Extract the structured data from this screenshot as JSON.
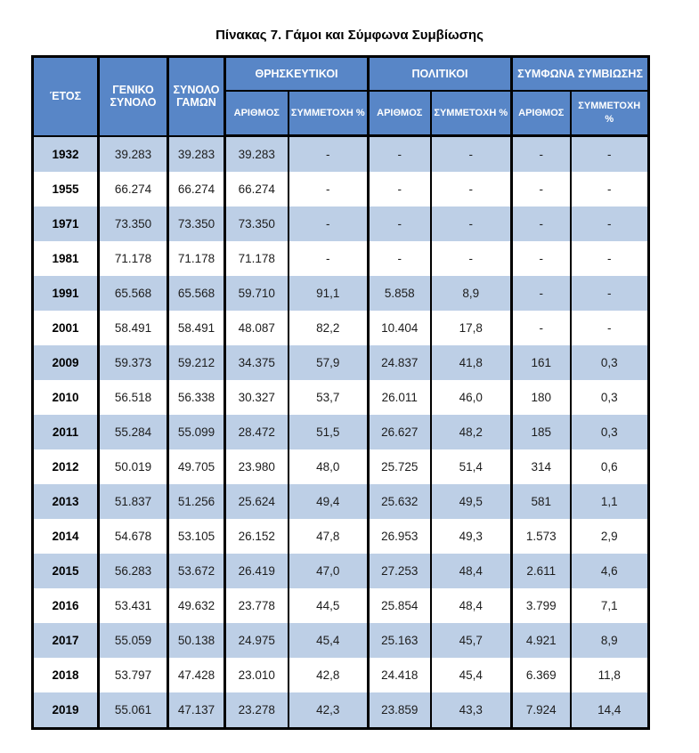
{
  "page": {
    "title": "Πίνακας 7. Γάμοι και Σύμφωνα Συμβίωσης"
  },
  "colors": {
    "header_bg": "#5886c7",
    "header_text": "#ffffff",
    "stripe_bg": "#bdcfe6",
    "row_bg": "#ffffff",
    "border": "#000000",
    "body_text": "#1d1d1d"
  },
  "chart_data": {
    "type": "table",
    "title": "Πίνακας 7. Γάμοι και Σύμφωνα Συμβίωσης",
    "header": {
      "year": "ΈΤΟΣ",
      "general_total": "ΓΕΝΙΚΟ ΣΥΝΟΛΟ",
      "marriages_total": "ΣΥΝΟΛΟ ΓΑΜΩΝ",
      "groups": [
        {
          "label": "ΘΡΗΣΚΕΥΤΙΚΟΙ",
          "sub": [
            "ΑΡΙΘΜΟΣ",
            "ΣΥΜΜΕΤΟΧΗ %"
          ]
        },
        {
          "label": "ΠΟΛΙΤΙΚΟΙ",
          "sub": [
            "ΑΡΙΘΜΟΣ",
            "ΣΥΜΜΕΤΟΧΗ %"
          ]
        },
        {
          "label": "ΣΥΜΦΩΝΑ ΣΥΜΒΙΩΣΗΣ",
          "sub": [
            "ΑΡΙΘΜΟΣ",
            "ΣΥΜΜΕΤΟΧΗ %"
          ]
        }
      ]
    },
    "rows": [
      [
        "1932",
        "39.283",
        "39.283",
        "39.283",
        "-",
        "-",
        "-",
        "-",
        "-"
      ],
      [
        "1955",
        "66.274",
        "66.274",
        "66.274",
        "-",
        "-",
        "-",
        "-",
        "-"
      ],
      [
        "1971",
        "73.350",
        "73.350",
        "73.350",
        "-",
        "-",
        "-",
        "-",
        "-"
      ],
      [
        "1981",
        "71.178",
        "71.178",
        "71.178",
        "-",
        "-",
        "-",
        "-",
        "-"
      ],
      [
        "1991",
        "65.568",
        "65.568",
        "59.710",
        "91,1",
        "5.858",
        "8,9",
        "-",
        "-"
      ],
      [
        "2001",
        "58.491",
        "58.491",
        "48.087",
        "82,2",
        "10.404",
        "17,8",
        "-",
        "-"
      ],
      [
        "2009",
        "59.373",
        "59.212",
        "34.375",
        "57,9",
        "24.837",
        "41,8",
        "161",
        "0,3"
      ],
      [
        "2010",
        "56.518",
        "56.338",
        "30.327",
        "53,7",
        "26.011",
        "46,0",
        "180",
        "0,3"
      ],
      [
        "2011",
        "55.284",
        "55.099",
        "28.472",
        "51,5",
        "26.627",
        "48,2",
        "185",
        "0,3"
      ],
      [
        "2012",
        "50.019",
        "49.705",
        "23.980",
        "48,0",
        "25.725",
        "51,4",
        "314",
        "0,6"
      ],
      [
        "2013",
        "51.837",
        "51.256",
        "25.624",
        "49,4",
        "25.632",
        "49,5",
        "581",
        "1,1"
      ],
      [
        "2014",
        "54.678",
        "53.105",
        "26.152",
        "47,8",
        "26.953",
        "49,3",
        "1.573",
        "2,9"
      ],
      [
        "2015",
        "56.283",
        "53.672",
        "26.419",
        "47,0",
        "27.253",
        "48,4",
        "2.611",
        "4,6"
      ],
      [
        "2016",
        "53.431",
        "49.632",
        "23.778",
        "44,5",
        "25.854",
        "48,4",
        "3.799",
        "7,1"
      ],
      [
        "2017",
        "55.059",
        "50.138",
        "24.975",
        "45,4",
        "25.163",
        "45,7",
        "4.921",
        "8,9"
      ],
      [
        "2018",
        "53.797",
        "47.428",
        "23.010",
        "42,8",
        "24.418",
        "45,4",
        "6.369",
        "11,8"
      ],
      [
        "2019",
        "55.061",
        "47.137",
        "23.278",
        "42,3",
        "23.859",
        "43,3",
        "7.924",
        "14,4"
      ]
    ]
  }
}
